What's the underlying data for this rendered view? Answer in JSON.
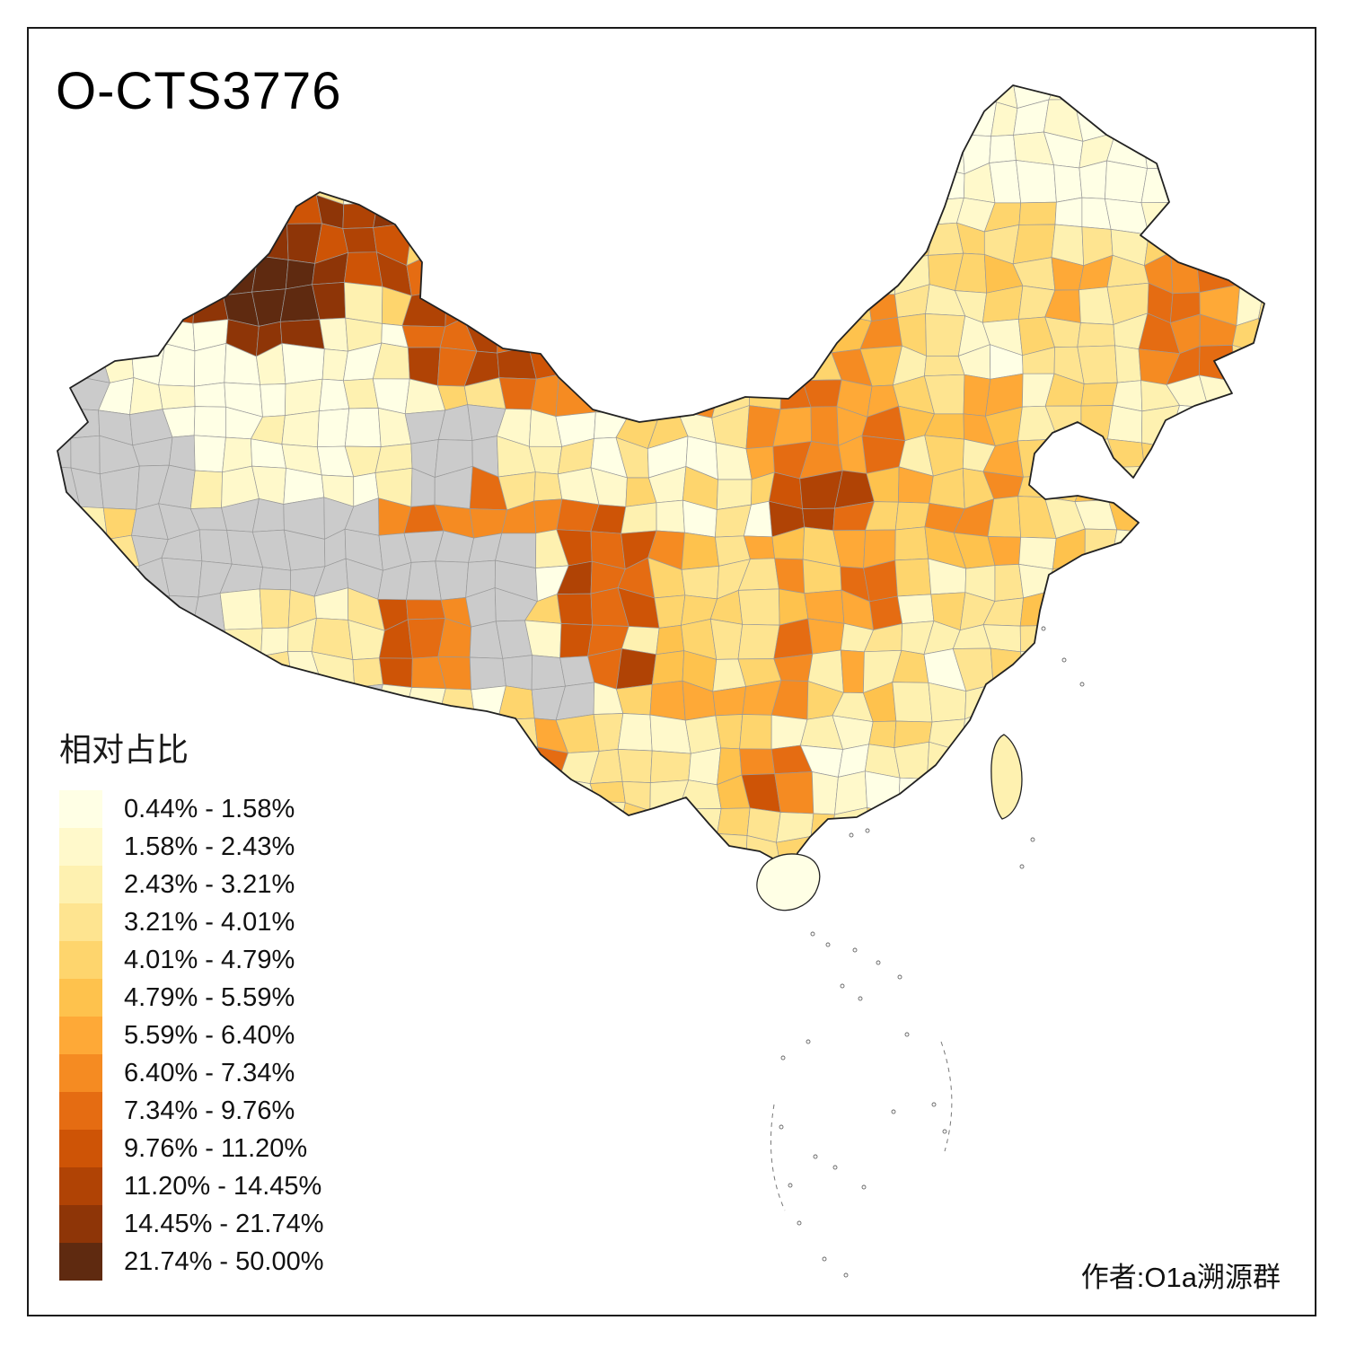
{
  "title": "O-CTS3776",
  "legend": {
    "title": "相对占比",
    "bins": [
      {
        "label": "0.44% - 1.58%",
        "color": "#FFFFE5"
      },
      {
        "label": "1.58% - 2.43%",
        "color": "#FFF9CB"
      },
      {
        "label": "2.43% - 3.21%",
        "color": "#FEF1B0"
      },
      {
        "label": "3.21% - 4.01%",
        "color": "#FEE490"
      },
      {
        "label": "4.01% - 4.79%",
        "color": "#FED56D"
      },
      {
        "label": "4.79% - 5.59%",
        "color": "#FEC24D"
      },
      {
        "label": "5.59% - 6.40%",
        "color": "#FEA937"
      },
      {
        "label": "6.40% - 7.34%",
        "color": "#F58B22"
      },
      {
        "label": "7.34% - 9.76%",
        "color": "#E56C12"
      },
      {
        "label": "9.76% - 11.20%",
        "color": "#CE5406"
      },
      {
        "label": "11.20% - 14.45%",
        "color": "#B04305"
      },
      {
        "label": "14.45% - 21.74%",
        "color": "#8E3507"
      },
      {
        "label": "21.74% - 50.00%",
        "color": "#5F2A10"
      }
    ],
    "no_data_color": "#CBCBCB"
  },
  "map": {
    "region": "China prefecture-level choropleth",
    "measure": "相对占比 (relative share) of haplogroup O-CTS3776",
    "border_color": "#222222",
    "cell_border_color": "#999999"
  },
  "author": "作者:O1a溯源群"
}
